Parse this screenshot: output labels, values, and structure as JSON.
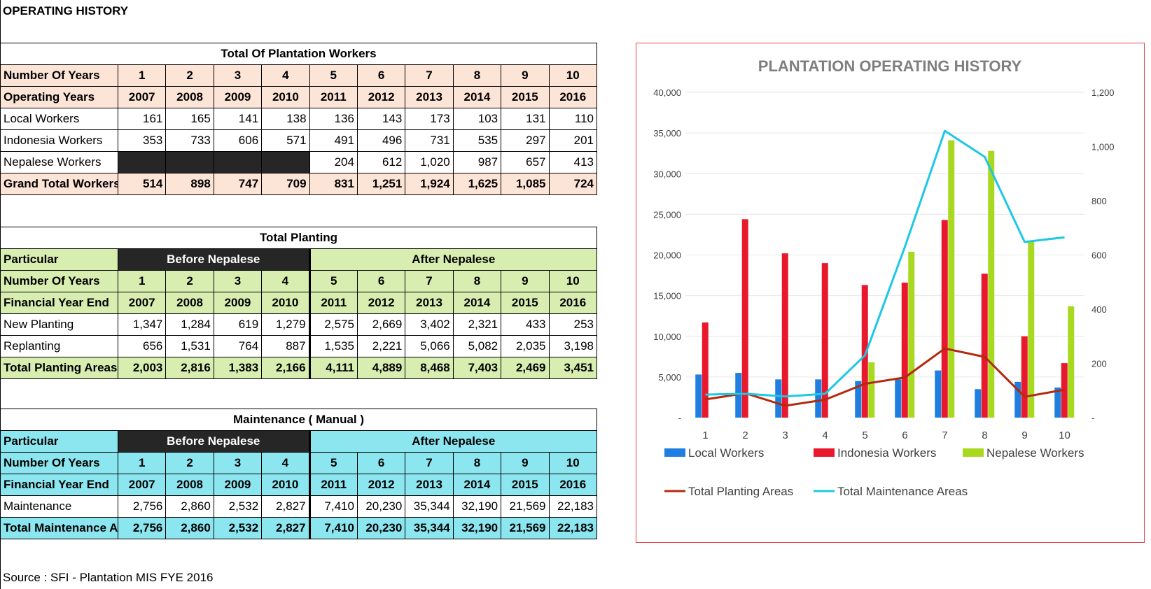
{
  "page_title": "OPERATING HISTORY",
  "workers_table": {
    "title": "Total Of Plantation Workers",
    "row_years_label": "Number Of Years",
    "row_op_label": "Operating Years",
    "years": [
      "1",
      "2",
      "3",
      "4",
      "5",
      "6",
      "7",
      "8",
      "9",
      "10"
    ],
    "fy": [
      "2007",
      "2008",
      "2009",
      "2010",
      "2011",
      "2012",
      "2013",
      "2014",
      "2015",
      "2016"
    ],
    "rows": [
      {
        "label": "Local Workers",
        "values": [
          "161",
          "165",
          "141",
          "138",
          "136",
          "143",
          "173",
          "103",
          "131",
          "110"
        ]
      },
      {
        "label": "Indonesia Workers",
        "values": [
          "353",
          "733",
          "606",
          "571",
          "491",
          "496",
          "731",
          "535",
          "297",
          "201"
        ]
      },
      {
        "label": "Nepalese Workers",
        "values": [
          "",
          "",
          "",
          "",
          "204",
          "612",
          "1,020",
          "987",
          "657",
          "413"
        ]
      }
    ],
    "total": {
      "label": "Grand Total Workers",
      "values": [
        "514",
        "898",
        "747",
        "709",
        "831",
        "1,251",
        "1,924",
        "1,625",
        "1,085",
        "724"
      ]
    }
  },
  "planting_table": {
    "title": "Total Planting",
    "particular_label": "Particular",
    "before_label": "Before Nepalese",
    "after_label": "After Nepalese",
    "row_years_label": "Number Of Years",
    "row_fy_label": "Financial Year End",
    "years": [
      "1",
      "2",
      "3",
      "4",
      "5",
      "6",
      "7",
      "8",
      "9",
      "10"
    ],
    "fy": [
      "2007",
      "2008",
      "2009",
      "2010",
      "2011",
      "2012",
      "2013",
      "2014",
      "2015",
      "2016"
    ],
    "rows": [
      {
        "label": "New Planting",
        "values": [
          "1,347",
          "1,284",
          "619",
          "1,279",
          "2,575",
          "2,669",
          "3,402",
          "2,321",
          "433",
          "253"
        ]
      },
      {
        "label": "Replanting",
        "values": [
          "656",
          "1,531",
          "764",
          "887",
          "1,535",
          "2,221",
          "5,066",
          "5,082",
          "2,035",
          "3,198"
        ]
      }
    ],
    "total": {
      "label": "Total Planting Areas",
      "values": [
        "2,003",
        "2,816",
        "1,383",
        "2,166",
        "4,111",
        "4,889",
        "8,468",
        "7,403",
        "2,469",
        "3,451"
      ]
    }
  },
  "maintenance_table": {
    "title": "Maintenance ( Manual )",
    "particular_label": "Particular",
    "before_label": "Before Nepalese",
    "after_label": "After Nepalese",
    "row_years_label": "Number Of Years",
    "row_fy_label": "Financial Year End",
    "years": [
      "1",
      "2",
      "3",
      "4",
      "5",
      "6",
      "7",
      "8",
      "9",
      "10"
    ],
    "fy": [
      "2007",
      "2008",
      "2009",
      "2010",
      "2011",
      "2012",
      "2013",
      "2014",
      "2015",
      "2016"
    ],
    "rows": [
      {
        "label": "Maintenance",
        "values": [
          "2,756",
          "2,860",
          "2,532",
          "2,827",
          "7,410",
          "20,230",
          "35,344",
          "32,190",
          "21,569",
          "22,183"
        ]
      }
    ],
    "total": {
      "label": "Total Maintenance Ar",
      "values": [
        "2,756",
        "2,860",
        "2,532",
        "2,827",
        "7,410",
        "20,230",
        "35,344",
        "32,190",
        "21,569",
        "22,183"
      ]
    }
  },
  "source": "Source : SFI - Plantation MIS FYE 2016",
  "colors": {
    "local": "#1F7FE0",
    "indonesia": "#E8192C",
    "nepalese": "#A8D820",
    "planting": "#B22A0E",
    "maintenance": "#1CC8E4",
    "chart_border": "#E0474C",
    "chart_title": "#7F7F7F"
  },
  "chart_data": {
    "type": "bar",
    "title": "PLANTATION OPERATING HISTORY",
    "categories": [
      "1",
      "2",
      "3",
      "4",
      "5",
      "6",
      "7",
      "8",
      "9",
      "10"
    ],
    "left_ticks": [
      "-",
      "5,000",
      "10,000",
      "15,000",
      "20,000",
      "25,000",
      "30,000",
      "35,000",
      "40,000"
    ],
    "right_ticks": [
      "-",
      "200",
      "400",
      "600",
      "800",
      "1,000",
      "1,200"
    ],
    "ylim_left": [
      0,
      40000
    ],
    "ylim_right": [
      0,
      1200
    ],
    "bar_axis": "left",
    "line_axis": "right",
    "series": [
      {
        "name": "Local Workers",
        "kind": "bar",
        "values": [
          5300,
          5500,
          4700,
          4700,
          4500,
          4700,
          5800,
          3500,
          4400,
          3700
        ]
      },
      {
        "name": "Indonesia Workers",
        "kind": "bar",
        "values": [
          11700,
          24400,
          20200,
          19000,
          16300,
          16600,
          24300,
          17700,
          10000,
          6700
        ]
      },
      {
        "name": "Nepalese Workers",
        "kind": "bar",
        "values": [
          0,
          0,
          0,
          0,
          6800,
          20400,
          34100,
          32800,
          21600,
          13700
        ]
      },
      {
        "name": "Total Planting Areas",
        "kind": "line",
        "values": [
          67,
          90,
          44,
          66,
          125,
          148,
          255,
          224,
          77,
          103
        ]
      },
      {
        "name": "Total Maintenance Areas",
        "kind": "line",
        "values": [
          85,
          88,
          78,
          88,
          230,
          630,
          1058,
          962,
          648,
          665
        ]
      }
    ],
    "legend_position": "bottom"
  }
}
